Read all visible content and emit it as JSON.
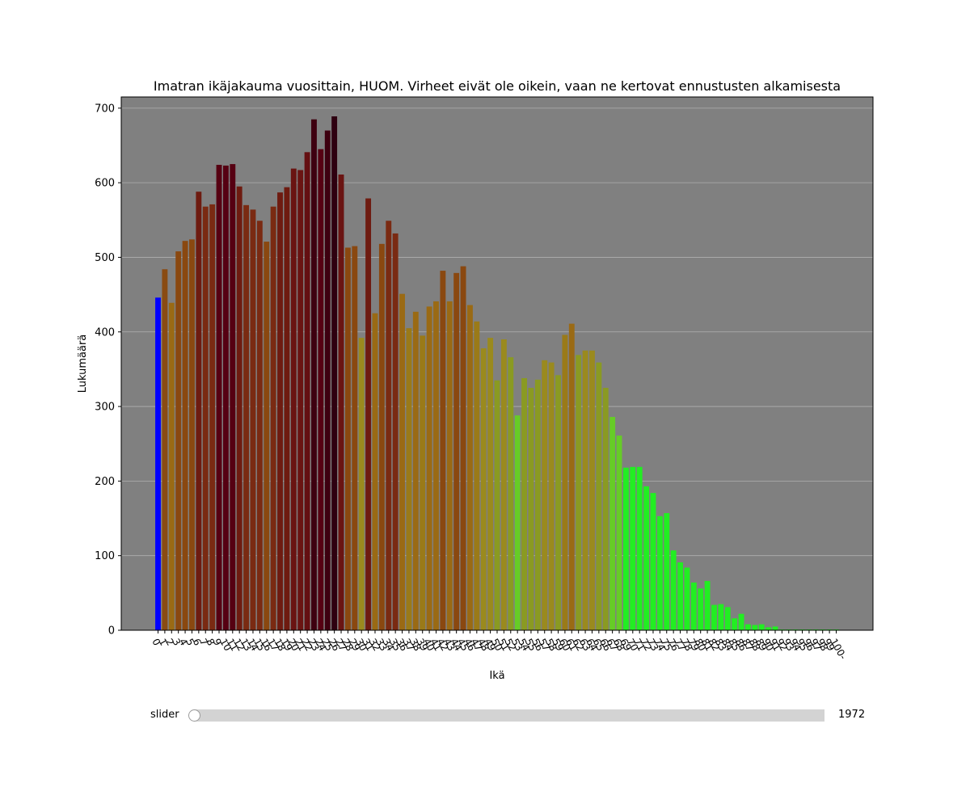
{
  "chart_data": {
    "type": "bar",
    "title": "Imatran ikäjakauma vuosittain, HUOM. Virheet eivät ole oikein, vaan ne kertovat ennustusten alkamisesta",
    "xlabel": "Ikä",
    "ylabel": "Lukumäärä",
    "ylim": [
      0,
      715
    ],
    "yticks": [
      0,
      100,
      200,
      300,
      400,
      500,
      600,
      700
    ],
    "grid": "horizontal",
    "categories": [
      "0",
      "1",
      "2",
      "3",
      "4",
      "5",
      "6",
      "7",
      "8",
      "9",
      "10",
      "11",
      "12",
      "13",
      "14",
      "15",
      "16",
      "17",
      "18",
      "19",
      "20",
      "21",
      "22",
      "23",
      "24",
      "25",
      "26",
      "27",
      "28",
      "29",
      "30",
      "31",
      "32",
      "33",
      "34",
      "35",
      "36",
      "37",
      "38",
      "39",
      "40",
      "41",
      "42",
      "43",
      "44",
      "45",
      "46",
      "47",
      "48",
      "49",
      "50",
      "51",
      "52",
      "53",
      "54",
      "55",
      "56",
      "57",
      "58",
      "59",
      "60",
      "61",
      "62",
      "63",
      "64",
      "65",
      "66",
      "67",
      "68",
      "69",
      "70",
      "71",
      "72",
      "73",
      "74",
      "75",
      "76",
      "77",
      "78",
      "79",
      "80",
      "81",
      "82",
      "83",
      "84",
      "85",
      "86",
      "87",
      "88",
      "89",
      "90",
      "91",
      "92",
      "93",
      "94",
      "95",
      "96",
      "97",
      "98",
      "99",
      "100-"
    ],
    "values": [
      446,
      484,
      439,
      508,
      522,
      524,
      588,
      568,
      571,
      624,
      623,
      625,
      595,
      570,
      564,
      549,
      521,
      568,
      587,
      594,
      619,
      617,
      641,
      685,
      645,
      670,
      689,
      611,
      513,
      515,
      392,
      579,
      425,
      518,
      549,
      532,
      451,
      405,
      427,
      395,
      434,
      441,
      482,
      441,
      479,
      488,
      436,
      414,
      378,
      392,
      335,
      390,
      366,
      288,
      338,
      325,
      336,
      362,
      359,
      342,
      396,
      411,
      369,
      375,
      375,
      359,
      325,
      286,
      261,
      218,
      219,
      219,
      193,
      184,
      153,
      157,
      107,
      91,
      84,
      64,
      56,
      66,
      34,
      35,
      31,
      16,
      22,
      8,
      7,
      8,
      4,
      5,
      1,
      1,
      1,
      1,
      1,
      1,
      1,
      1,
      1
    ],
    "colors": [
      "#0000ff",
      "#8a4b12",
      "#9a6a14",
      "#8a4810",
      "#8a4810",
      "#8a4810",
      "#6e1b10",
      "#7a2a12",
      "#7a2a12",
      "#560012",
      "#560012",
      "#560012",
      "#6e1b10",
      "#7a2a12",
      "#7a2a12",
      "#7a2a12",
      "#8a4810",
      "#7a2a12",
      "#6e1b10",
      "#6e1b10",
      "#6a1412",
      "#6a1412",
      "#640f12",
      "#3e0010",
      "#560012",
      "#3e0010",
      "#2e0010",
      "#6a1412",
      "#8a4810",
      "#8a4810",
      "#9a8a1e",
      "#6e1b10",
      "#9a6a14",
      "#8a4810",
      "#7a2a12",
      "#7a2a12",
      "#9a6a14",
      "#9a7a18",
      "#9a6a14",
      "#9a7a18",
      "#9a6a14",
      "#9a6a14",
      "#8a4810",
      "#9a6a14",
      "#8a4810",
      "#8a4810",
      "#9a6a14",
      "#9a7a18",
      "#9a8a1e",
      "#9a8a1e",
      "#8a9a22",
      "#9a8a1e",
      "#8a9a22",
      "#66cc26",
      "#8a9a22",
      "#8a9a22",
      "#8a9a22",
      "#9a8a1e",
      "#9a8a1e",
      "#8a9a22",
      "#9a7a18",
      "#9a6a14",
      "#8a9a22",
      "#9a8a1e",
      "#9a8a1e",
      "#8a9a22",
      "#8a9a22",
      "#66cc26",
      "#66cc26",
      "#22ee22",
      "#22ee22",
      "#22ee22",
      "#22ee22",
      "#22ee22",
      "#22ee22",
      "#22ee22",
      "#22ee22",
      "#22ee22",
      "#22ee22",
      "#22ee22",
      "#22ee22",
      "#22ee22",
      "#22ee22",
      "#22ee22",
      "#22ee22",
      "#22ee22",
      "#22ee22",
      "#22ee22",
      "#22ee22",
      "#22ee22",
      "#22ee22",
      "#22ee22",
      "#22ee22",
      "#22ee22",
      "#22ee22",
      "#22ee22",
      "#22ee22",
      "#22ee22",
      "#22ee22",
      "#22ee22",
      "#22ee22"
    ]
  },
  "style": {
    "plot_background": "#808080",
    "grid_color": "#b0b0b0"
  },
  "slider": {
    "label": "slider",
    "value": "1972",
    "position": 0
  }
}
